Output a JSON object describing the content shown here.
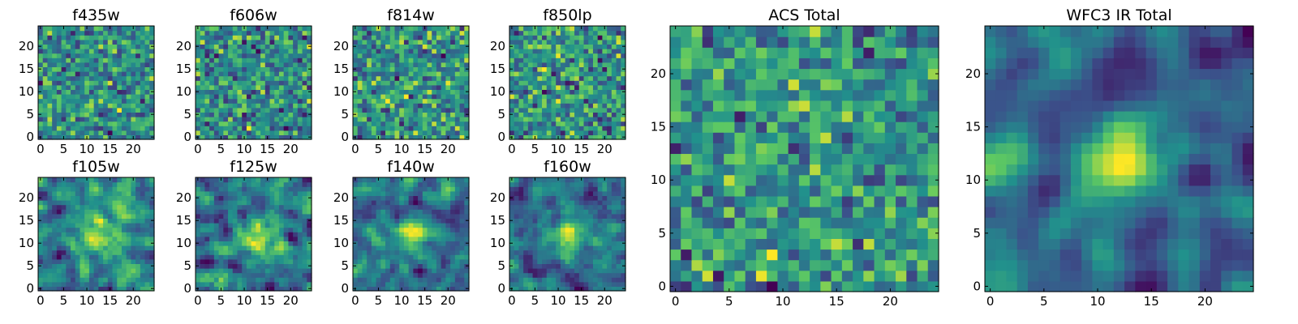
{
  "figure": {
    "colormap": "viridis",
    "colormap_stops": [
      "#440154",
      "#3b528b",
      "#21918c",
      "#5ec962",
      "#fde725"
    ]
  },
  "chart_data": [
    {
      "type": "heatmap",
      "title": "f435w",
      "grid_size": 25,
      "seed": 11,
      "smooth": 0,
      "xticks": [
        "0",
        "5",
        "10",
        "15",
        "20"
      ],
      "yticks": [
        "0",
        "5",
        "10",
        "15",
        "20"
      ],
      "xlim": [
        -0.5,
        24.5
      ],
      "ylim": [
        -0.5,
        24.5
      ]
    },
    {
      "type": "heatmap",
      "title": "f606w",
      "grid_size": 25,
      "seed": 23,
      "smooth": 0,
      "xticks": [
        "0",
        "5",
        "10",
        "15",
        "20"
      ],
      "yticks": [
        "0",
        "5",
        "10",
        "15",
        "20"
      ],
      "xlim": [
        -0.5,
        24.5
      ],
      "ylim": [
        -0.5,
        24.5
      ]
    },
    {
      "type": "heatmap",
      "title": "f814w",
      "grid_size": 25,
      "seed": 37,
      "smooth": 0,
      "xticks": [
        "0",
        "5",
        "10",
        "15",
        "20"
      ],
      "yticks": [
        "0",
        "5",
        "10",
        "15",
        "20"
      ],
      "xlim": [
        -0.5,
        24.5
      ],
      "ylim": [
        -0.5,
        24.5
      ]
    },
    {
      "type": "heatmap",
      "title": "f850lp",
      "grid_size": 25,
      "seed": 41,
      "smooth": 0,
      "xticks": [
        "0",
        "5",
        "10",
        "15",
        "20"
      ],
      "yticks": [
        "0",
        "5",
        "10",
        "15",
        "20"
      ],
      "xlim": [
        -0.5,
        24.5
      ],
      "ylim": [
        -0.5,
        24.5
      ]
    },
    {
      "type": "heatmap",
      "title": "f105w",
      "grid_size": 25,
      "seed": 53,
      "smooth": 1,
      "xticks": [
        "0",
        "5",
        "10",
        "15",
        "20"
      ],
      "yticks": [
        "0",
        "5",
        "10",
        "15",
        "20"
      ],
      "xlim": [
        -0.5,
        24.5
      ],
      "ylim": [
        -0.5,
        24.5
      ]
    },
    {
      "type": "heatmap",
      "title": "f125w",
      "grid_size": 25,
      "seed": 67,
      "smooth": 1,
      "xticks": [
        "0",
        "5",
        "10",
        "15",
        "20"
      ],
      "yticks": [
        "0",
        "5",
        "10",
        "15",
        "20"
      ],
      "xlim": [
        -0.5,
        24.5
      ],
      "ylim": [
        -0.5,
        24.5
      ]
    },
    {
      "type": "heatmap",
      "title": "f140w",
      "grid_size": 25,
      "seed": 71,
      "smooth": 1,
      "xticks": [
        "0",
        "5",
        "10",
        "15",
        "20"
      ],
      "yticks": [
        "0",
        "5",
        "10",
        "15",
        "20"
      ],
      "xlim": [
        -0.5,
        24.5
      ],
      "ylim": [
        -0.5,
        24.5
      ]
    },
    {
      "type": "heatmap",
      "title": "f160w",
      "grid_size": 25,
      "seed": 83,
      "smooth": 1,
      "xticks": [
        "0",
        "5",
        "10",
        "15",
        "20"
      ],
      "yticks": [
        "0",
        "5",
        "10",
        "15",
        "20"
      ],
      "xlim": [
        -0.5,
        24.5
      ],
      "ylim": [
        -0.5,
        24.5
      ]
    },
    {
      "type": "heatmap",
      "title": "ACS Total",
      "grid_size": 25,
      "seed": 97,
      "smooth": 0,
      "xticks": [
        "0",
        "5",
        "10",
        "15",
        "20"
      ],
      "yticks": [
        "0",
        "5",
        "10",
        "15",
        "20"
      ],
      "xlim": [
        -0.5,
        24.5
      ],
      "ylim": [
        -0.5,
        24.5
      ]
    },
    {
      "type": "heatmap",
      "title": "WFC3 IR Total",
      "grid_size": 25,
      "seed": 101,
      "smooth": 2,
      "xticks": [
        "0",
        "5",
        "10",
        "15",
        "20"
      ],
      "yticks": [
        "0",
        "5",
        "10",
        "15",
        "20"
      ],
      "xlim": [
        -0.5,
        24.5
      ],
      "ylim": [
        -0.5,
        24.5
      ]
    }
  ]
}
